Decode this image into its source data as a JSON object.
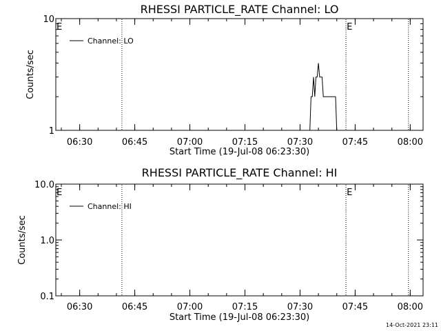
{
  "chart_data": [
    {
      "type": "line",
      "title": "RHESSI PARTICLE_RATE Channel: LO",
      "xlabel": "Start Time (19-Jul-08 06:23:30)",
      "ylabel": "Counts/sec",
      "y_scale": "log",
      "ylim": [
        1,
        10
      ],
      "y_ticks": [
        "1",
        "10"
      ],
      "xlim": [
        "06:23:30",
        "08:03:30"
      ],
      "x_ticks": [
        "06:30",
        "06:45",
        "07:00",
        "07:15",
        "07:30",
        "07:45",
        "08:00"
      ],
      "grid": false,
      "legend_position": "top-left",
      "series": [
        {
          "name": "Channel: LO",
          "x": [
            "07:32:40",
            "07:33:00",
            "07:33:20",
            "07:33:40",
            "07:34:00",
            "07:34:20",
            "07:34:40",
            "07:35:00",
            "07:35:20",
            "07:35:40",
            "07:36:00",
            "07:36:20",
            "07:36:40",
            "07:37:00",
            "07:37:20",
            "07:37:40",
            "07:38:00",
            "07:38:20",
            "07:38:40",
            "07:39:00",
            "07:39:20",
            "07:39:40",
            "07:40:00",
            "07:40:20",
            "07:40:40",
            "07:41:00"
          ],
          "y": [
            1,
            2,
            2,
            3,
            2,
            3,
            3,
            4,
            3,
            3,
            3,
            2,
            2,
            2,
            2,
            2,
            2,
            2,
            2,
            2,
            2,
            2,
            1,
            1,
            1,
            1
          ]
        }
      ],
      "vertical_markers": [
        "06:41:30",
        "07:42:30",
        "07:59:30"
      ],
      "marker_labels": [
        {
          "text": "E",
          "at": "06:23:30"
        },
        {
          "text": "E",
          "at": "07:42:30"
        }
      ]
    },
    {
      "type": "line",
      "title": "RHESSI PARTICLE_RATE Channel: HI",
      "xlabel": "Start Time (19-Jul-08 06:23:30)",
      "ylabel": "Counts/sec",
      "y_scale": "log",
      "ylim": [
        0.1,
        10
      ],
      "y_ticks": [
        "0.1",
        "1.0",
        "10.0"
      ],
      "xlim": [
        "06:23:30",
        "08:03:30"
      ],
      "x_ticks": [
        "06:30",
        "06:45",
        "07:00",
        "07:15",
        "07:30",
        "07:45",
        "08:00"
      ],
      "grid": false,
      "legend_position": "top-left",
      "series": [
        {
          "name": "Channel: HI",
          "x": [],
          "y": []
        }
      ],
      "vertical_markers": [
        "06:41:30",
        "07:42:30",
        "07:59:30"
      ],
      "marker_labels": [
        {
          "text": "E",
          "at": "06:23:30"
        },
        {
          "text": "E",
          "at": "07:42:30"
        }
      ]
    }
  ],
  "footer": {
    "timestamp": "14-Oct-2021 23:11"
  }
}
